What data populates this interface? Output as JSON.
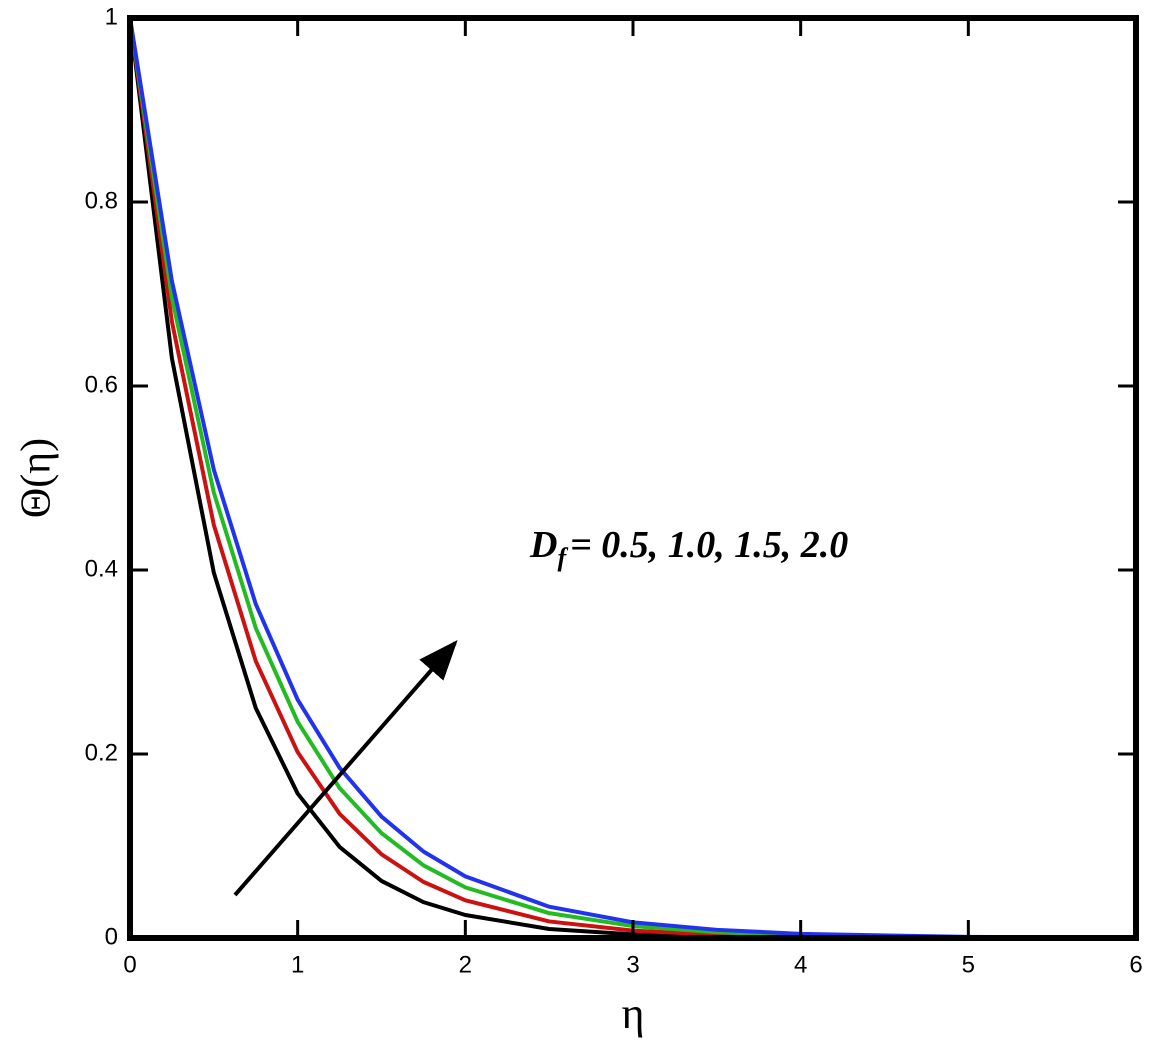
{
  "chart_data": {
    "type": "line",
    "x_label": "η",
    "y_label": "Θ(η)",
    "annotation": {
      "symbol": "D",
      "subscript": "f",
      "text": "= 0.5, 1.0, 1.5, 2.0"
    },
    "x": [
      0,
      0.25,
      0.5,
      0.75,
      1,
      1.25,
      1.5,
      1.75,
      2,
      2.5,
      3,
      3.5,
      4,
      5,
      6
    ],
    "series": [
      {
        "color": "#000000",
        "values": [
          1,
          0.63,
          0.397,
          0.25,
          0.157,
          0.099,
          0.062,
          0.039,
          0.025,
          0.0098,
          0.0039,
          0.0015,
          0.0006,
          0.0001,
          0
        ]
      },
      {
        "color": "#cc1111",
        "values": [
          1,
          0.67,
          0.449,
          0.301,
          0.202,
          0.135,
          0.091,
          0.061,
          0.041,
          0.018,
          0.008,
          0.0037,
          0.0017,
          0.0003,
          0.0001
        ]
      },
      {
        "color": "#22bb22",
        "values": [
          1,
          0.696,
          0.484,
          0.337,
          0.235,
          0.163,
          0.114,
          0.079,
          0.055,
          0.027,
          0.013,
          0.0063,
          0.003,
          0.0007,
          0.0002
        ]
      },
      {
        "color": "#2233ee",
        "values": [
          1,
          0.714,
          0.509,
          0.363,
          0.259,
          0.185,
          0.132,
          0.094,
          0.067,
          0.034,
          0.017,
          0.0089,
          0.0045,
          0.0012,
          0.0003
        ]
      }
    ],
    "xlim": [
      0,
      6
    ],
    "ylim": [
      0,
      1
    ],
    "xticks": [
      0,
      1,
      2,
      3,
      4,
      5,
      6
    ],
    "yticks": [
      0,
      0.2,
      0.4,
      0.6,
      0.8,
      1
    ]
  }
}
